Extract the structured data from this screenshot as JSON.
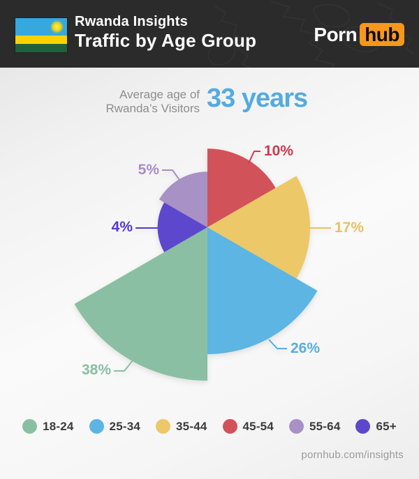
{
  "header": {
    "title": "Rwanda Insights",
    "subtitle": "Traffic by Age Group",
    "logo": {
      "part1": "Porn",
      "part2": "hub",
      "accent_color": "#f7971d"
    },
    "flag_colors": {
      "blue": "#37a8dd",
      "yellow": "#fad201",
      "green": "#20603d",
      "sun": "#f2d30a"
    },
    "background_color": "#2b2b2b"
  },
  "average_age": {
    "label_line1": "Average age of",
    "label_line2": "Rwanda’s Visitors",
    "value": "33 years",
    "value_color": "#54abde"
  },
  "chart_data": {
    "type": "pie",
    "variant": "polar-area-rose",
    "title": "Traffic by Age Group",
    "unit": "%",
    "radius_scale": "sqrt",
    "sector_angle_deg": 60,
    "legend_position": "bottom",
    "clockwise_order_from_top": [
      "45-54",
      "35-44",
      "25-34",
      "18-24",
      "65+",
      "55-64"
    ],
    "segments": [
      {
        "label": "18-24",
        "value": 38,
        "display": "38%",
        "color": "#8abfa3",
        "label_color": "#8abda2"
      },
      {
        "label": "25-34",
        "value": 26,
        "display": "26%",
        "color": "#5cb5e3",
        "label_color": "#58ade0"
      },
      {
        "label": "35-44",
        "value": 17,
        "display": "17%",
        "color": "#ecc868",
        "label_color": "#eac25e"
      },
      {
        "label": "45-54",
        "value": 10,
        "display": "10%",
        "color": "#d25259",
        "label_color": "#d23750"
      },
      {
        "label": "55-64",
        "value": 5,
        "display": "5%",
        "color": "#a791c5",
        "label_color": "#a78dc8"
      },
      {
        "label": "65+",
        "value": 4,
        "display": "4%",
        "color": "#5d47cd",
        "label_color": "#5438d2"
      }
    ]
  },
  "footer": {
    "url": "pornhub.com/insights"
  }
}
